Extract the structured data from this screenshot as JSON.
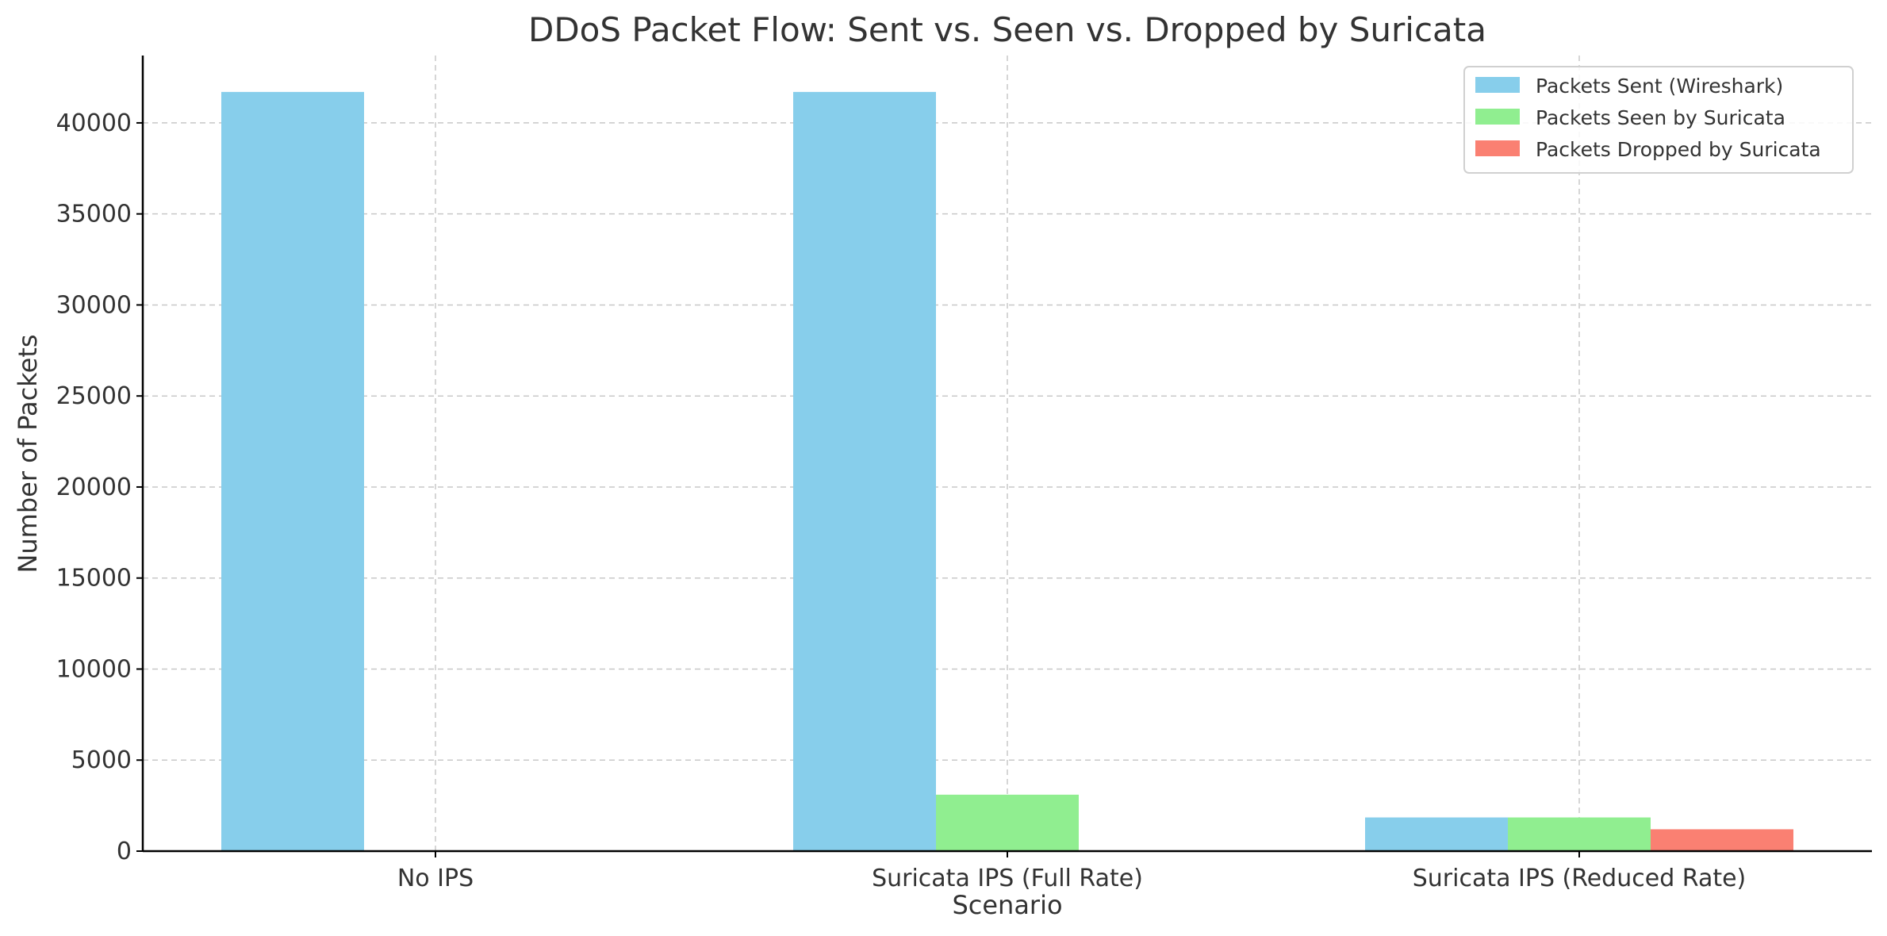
{
  "chart_data": {
    "type": "bar",
    "title": "DDoS Packet Flow: Sent vs. Seen vs. Dropped by Suricata",
    "xlabel": "Scenario",
    "ylabel": "Number of Packets",
    "categories": [
      "No IPS",
      "Suricata IPS (Full Rate)",
      "Suricata IPS (Reduced Rate)"
    ],
    "ylim": [
      0,
      43700
    ],
    "yticks": [
      0,
      5000,
      10000,
      15000,
      20000,
      25000,
      30000,
      35000,
      40000
    ],
    "grid": true,
    "legend_position": "top-right",
    "series": [
      {
        "name": "Packets Sent (Wireshark)",
        "color": "#87ceeb",
        "values": [
          41700,
          41700,
          1850
        ]
      },
      {
        "name": "Packets Seen by Suricata",
        "color": "#90ee90",
        "values": [
          0,
          3100,
          1850
        ]
      },
      {
        "name": "Packets Dropped by Suricata",
        "color": "#fa8072",
        "values": [
          0,
          0,
          1200
        ]
      }
    ]
  }
}
